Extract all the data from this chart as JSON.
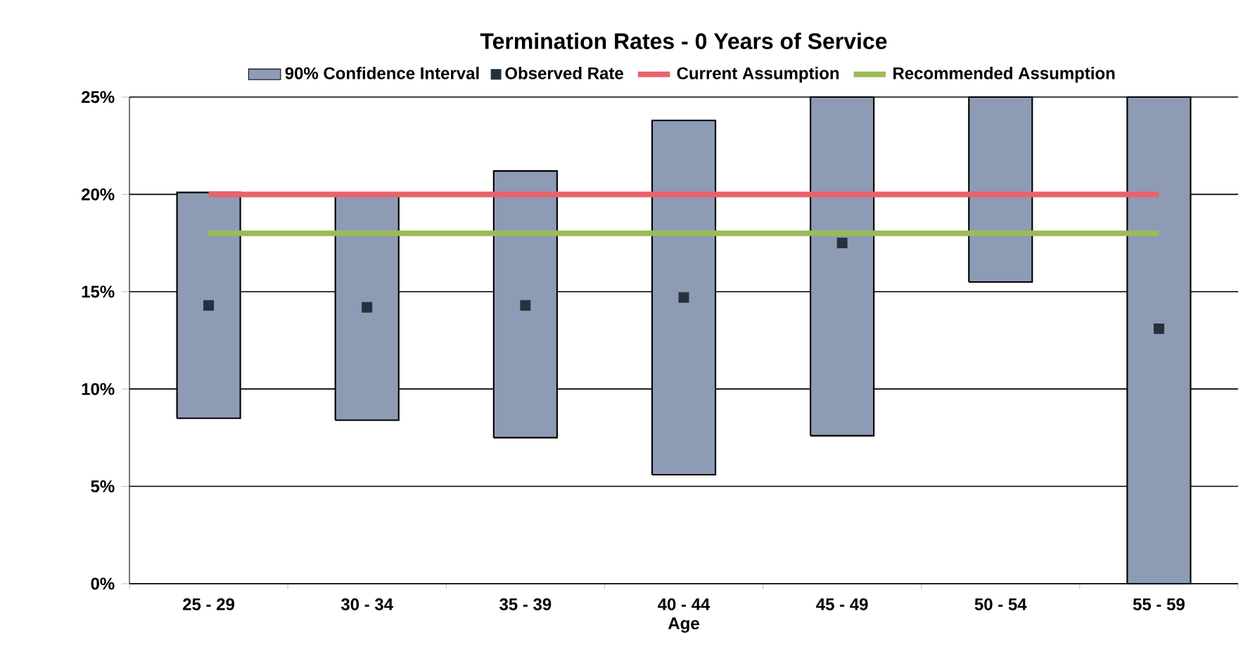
{
  "chart_data": {
    "type": "bar",
    "title": "Termination Rates - 0 Years of Service",
    "xlabel": "Age",
    "categories": [
      "25 - 29",
      "30 - 34",
      "35 - 39",
      "40 - 44",
      "45 - 49",
      "50 - 54",
      "55 - 59"
    ],
    "ylim": [
      0,
      25
    ],
    "yticks": [
      {
        "value": 0,
        "label": "0%"
      },
      {
        "value": 5,
        "label": "5%"
      },
      {
        "value": 10,
        "label": "10%"
      },
      {
        "value": 15,
        "label": "15%"
      },
      {
        "value": 20,
        "label": "20%"
      },
      {
        "value": 25,
        "label": "25%"
      }
    ],
    "grid": "y",
    "legend": "top",
    "series": [
      {
        "name": "90% Confidence Interval",
        "color": "#8e9bb5",
        "base": [
          8.5,
          8.4,
          7.5,
          5.6,
          7.6,
          15.5,
          0
        ],
        "values": [
          11.6,
          11.6,
          13.7,
          18.2,
          17.4,
          9.5,
          25
        ]
      },
      {
        "name": "Observed Rate",
        "type": "scatter",
        "color": "#25313d",
        "marker": "square",
        "values": [
          14.3,
          14.2,
          14.3,
          14.7,
          17.5,
          null,
          13.1
        ]
      },
      {
        "name": "Current Assumption",
        "type": "line",
        "color": "#e9636b",
        "values": [
          20,
          20,
          20,
          20,
          20,
          20,
          20
        ]
      },
      {
        "name": "Recommended Assumption",
        "type": "line",
        "color": "#9bbb59",
        "values": [
          18,
          18,
          18,
          18,
          18,
          18,
          18
        ]
      }
    ]
  }
}
